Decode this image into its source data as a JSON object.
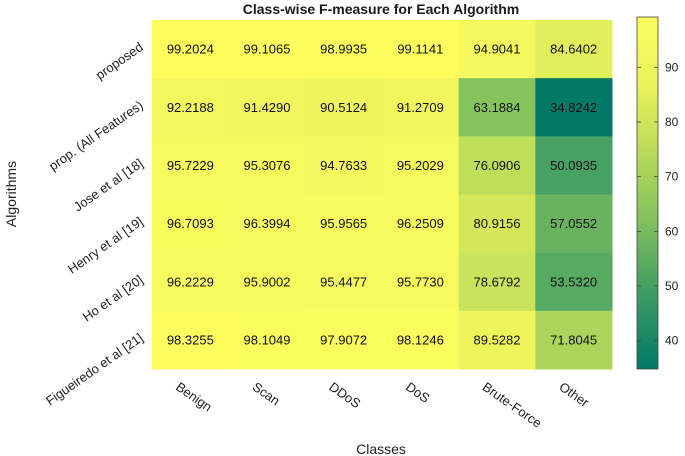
{
  "chart_data": {
    "type": "heatmap",
    "title": "Class-wise F-measure for  Each Algorithm",
    "xlabel": "Classes",
    "ylabel": "Algorithms",
    "columns": [
      "Benign",
      "Scan",
      "DDoS",
      "DoS",
      "Brute-Force",
      "Other"
    ],
    "rows": [
      "proposed",
      "prop. (All Features)",
      "Jose et al [18]",
      "Henry et al [19]",
      "Ho et al [20]",
      "Figueiredo et al [21]"
    ],
    "values": [
      [
        99.2024,
        99.1065,
        98.9935,
        99.1141,
        94.9041,
        84.6402
      ],
      [
        92.2188,
        91.429,
        90.5124,
        91.2709,
        63.1884,
        34.8242
      ],
      [
        95.7229,
        95.3076,
        94.7633,
        95.2029,
        76.0906,
        50.0935
      ],
      [
        96.7093,
        96.3994,
        95.9565,
        96.2509,
        80.9156,
        57.0552
      ],
      [
        96.2229,
        95.9002,
        95.4477,
        95.773,
        78.6792,
        53.532
      ],
      [
        98.3255,
        98.1049,
        97.9072,
        98.1246,
        89.5282,
        71.8045
      ]
    ],
    "value_labels": [
      [
        "99.2024",
        "99.1065",
        "98.9935",
        "99.1141",
        "94.9041",
        "84.6402"
      ],
      [
        "92.2188",
        "91.4290",
        "90.5124",
        "91.2709",
        "63.1884",
        "34.8242"
      ],
      [
        "95.7229",
        "95.3076",
        "94.7633",
        "95.2029",
        "76.0906",
        "50.0935"
      ],
      [
        "96.7093",
        "96.3994",
        "95.9565",
        "96.2509",
        "80.9156",
        "57.0552"
      ],
      [
        "96.2229",
        "95.9002",
        "95.4477",
        "95.7730",
        "78.6792",
        "53.5320"
      ],
      [
        "98.3255",
        "98.1049",
        "97.9072",
        "98.1246",
        "89.5282",
        "71.8045"
      ]
    ],
    "colorbar": {
      "min": 34.8242,
      "max": 99.2024,
      "ticks": [
        40,
        50,
        60,
        70,
        80,
        90
      ],
      "colormap": [
        "#007a66",
        "#3a9a63",
        "#7bbd5e",
        "#b5d95a",
        "#e8f25a",
        "#fdfd5e"
      ]
    },
    "grid": false
  }
}
